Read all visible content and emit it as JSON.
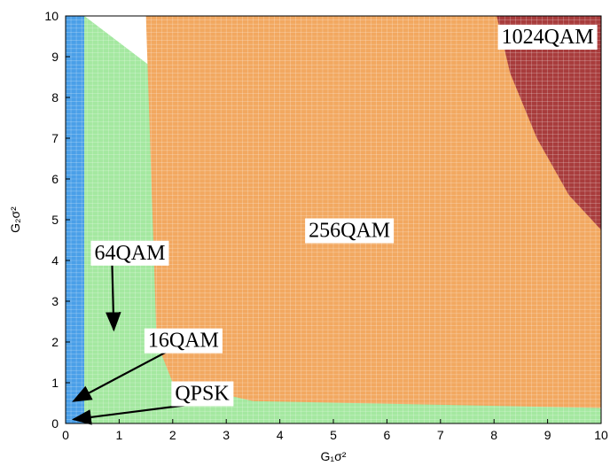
{
  "chart_data": {
    "type": "heatmap",
    "xlabel": "G₁σ²",
    "ylabel": "G₂σ²",
    "xlim": [
      0,
      10
    ],
    "ylim": [
      0,
      10
    ],
    "xticks": [
      "0",
      "1",
      "2",
      "3",
      "4",
      "5",
      "6",
      "7",
      "8",
      "9",
      "10"
    ],
    "yticks": [
      "0",
      "1",
      "2",
      "3",
      "4",
      "5",
      "6",
      "7",
      "8",
      "9",
      "10"
    ],
    "grid": true,
    "colors": {
      "QPSK": "#4a9fe8",
      "16QAM": "#a4e8a0",
      "256QAM": "#f2a860",
      "1024QAM": "#a83c3c"
    },
    "regions": [
      {
        "name": "QPSK",
        "color": "#4a9fe8",
        "boundary": [
          [
            0,
            0
          ],
          [
            0.35,
            0
          ],
          [
            0.35,
            10
          ],
          [
            0,
            10
          ]
        ]
      },
      {
        "name": "16QAM",
        "color": "#a4e8a0",
        "boundary": [
          [
            0.35,
            0
          ],
          [
            10,
            0
          ],
          [
            10,
            0.35
          ],
          [
            0.35,
            10
          ]
        ]
      },
      {
        "name": "256QAM",
        "color": "#f2a860",
        "boundary": [
          [
            1.5,
            10
          ],
          [
            1.6,
            6
          ],
          [
            1.7,
            2
          ],
          [
            2,
            1
          ],
          [
            3.5,
            0.55
          ],
          [
            10,
            0.38
          ],
          [
            10,
            10
          ]
        ]
      },
      {
        "name": "1024QAM",
        "color": "#a83c3c",
        "boundary": [
          [
            8.05,
            10
          ],
          [
            8.3,
            8.6
          ],
          [
            8.8,
            7
          ],
          [
            9.4,
            5.6
          ],
          [
            10,
            4.75
          ],
          [
            10,
            10
          ]
        ]
      }
    ],
    "annotations": [
      {
        "text": "1024QAM",
        "x": 9.0,
        "y": 9.5
      },
      {
        "text": "256QAM",
        "x": 5.3,
        "y": 4.75
      },
      {
        "text": "64QAM",
        "x": 1.2,
        "y": 4.2,
        "arrow_to": [
          0.9,
          2.3
        ]
      },
      {
        "text": "16QAM",
        "x": 2.2,
        "y": 2.05,
        "arrow_to": [
          0.15,
          0.55
        ]
      },
      {
        "text": "QPSK",
        "x": 2.55,
        "y": 0.75,
        "arrow_to": [
          0.15,
          0.1
        ]
      }
    ]
  }
}
